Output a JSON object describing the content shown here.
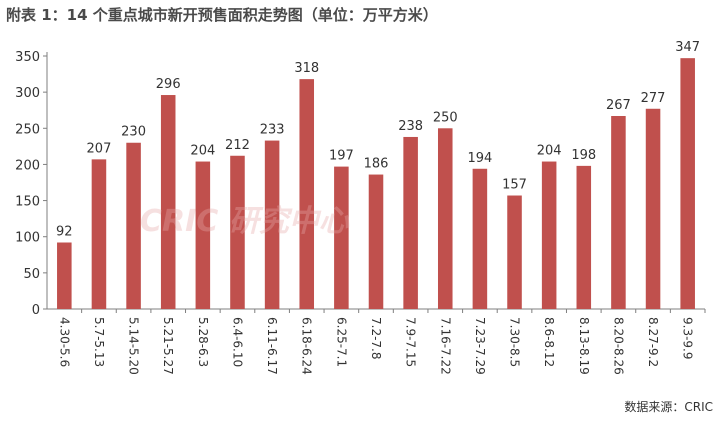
{
  "chart_data": {
    "type": "bar",
    "title": "附表 1：14 个重点城市新开预售面积走势图（单位：万平方米）",
    "categories": [
      "4.30-5.6",
      "5.7-5.13",
      "5.14-5.20",
      "5.21-5.27",
      "5.28-6.3",
      "6.4-6.10",
      "6.11-6.17",
      "6.18-6.24",
      "6.25-7.1",
      "7.2-7.8",
      "7.9-7.15",
      "7.16-7.22",
      "7.23-7.29",
      "7.30-8.5",
      "8.6-8.12",
      "8.13-8.19",
      "8.20-8.26",
      "8.27-9.2",
      "9.3-9.9"
    ],
    "values": [
      92,
      207,
      230,
      296,
      204,
      212,
      233,
      318,
      197,
      186,
      238,
      250,
      194,
      157,
      204,
      198,
      267,
      277,
      347
    ],
    "ylim": [
      0,
      350
    ],
    "yticks": [
      0,
      50,
      100,
      150,
      200,
      250,
      300,
      350
    ],
    "bar_color": "#c0504d",
    "grid": false,
    "legend": "none"
  },
  "watermark": "CRIC 研究中心",
  "source": "数据来源：CRIC"
}
